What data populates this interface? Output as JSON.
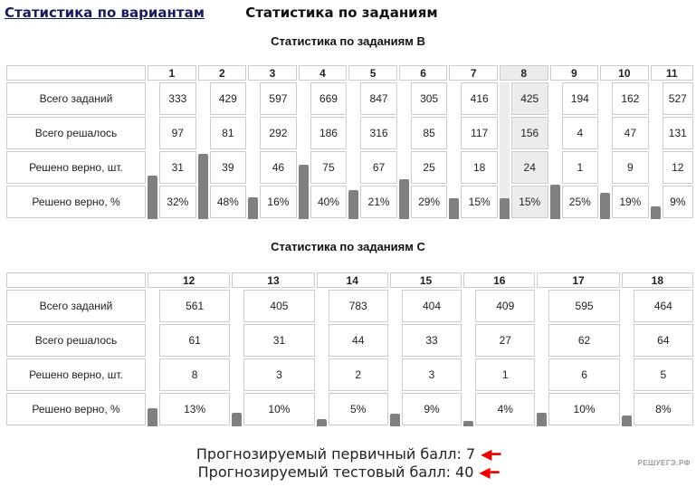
{
  "tabs": {
    "variants": "Статистика по вариантам",
    "tasks": "Статистика по заданиям"
  },
  "row_labels": [
    "Всего заданий",
    "Всего решалось",
    "Решено верно, шт.",
    "Решено верно, %"
  ],
  "section_b": {
    "title": "Статистика по заданиям B",
    "highlighted": "8",
    "columns": [
      {
        "n": "1",
        "total": "333",
        "tried": "97",
        "correct": "31",
        "pct": "32%",
        "pct_value": 32
      },
      {
        "n": "2",
        "total": "429",
        "tried": "81",
        "correct": "39",
        "pct": "48%",
        "pct_value": 48
      },
      {
        "n": "3",
        "total": "597",
        "tried": "292",
        "correct": "46",
        "pct": "16%",
        "pct_value": 16
      },
      {
        "n": "4",
        "total": "669",
        "tried": "186",
        "correct": "75",
        "pct": "40%",
        "pct_value": 40
      },
      {
        "n": "5",
        "total": "847",
        "tried": "316",
        "correct": "67",
        "pct": "21%",
        "pct_value": 21
      },
      {
        "n": "6",
        "total": "305",
        "tried": "85",
        "correct": "25",
        "pct": "29%",
        "pct_value": 29
      },
      {
        "n": "7",
        "total": "416",
        "tried": "117",
        "correct": "18",
        "pct": "15%",
        "pct_value": 15
      },
      {
        "n": "8",
        "total": "425",
        "tried": "156",
        "correct": "24",
        "pct": "15%",
        "pct_value": 15
      },
      {
        "n": "9",
        "total": "194",
        "tried": "4",
        "correct": "1",
        "pct": "25%",
        "pct_value": 25
      },
      {
        "n": "10",
        "total": "162",
        "tried": "47",
        "correct": "9",
        "pct": "19%",
        "pct_value": 19
      },
      {
        "n": "11",
        "total": "527",
        "tried": "131",
        "correct": "12",
        "pct": "9%",
        "pct_value": 9
      }
    ]
  },
  "section_c": {
    "title": "Статистика по заданиям C",
    "columns": [
      {
        "n": "12",
        "total": "561",
        "tried": "61",
        "correct": "8",
        "pct": "13%",
        "pct_value": 13
      },
      {
        "n": "13",
        "total": "405",
        "tried": "31",
        "correct": "3",
        "pct": "10%",
        "pct_value": 10
      },
      {
        "n": "14",
        "total": "783",
        "tried": "44",
        "correct": "2",
        "pct": "5%",
        "pct_value": 5
      },
      {
        "n": "15",
        "total": "404",
        "tried": "33",
        "correct": "3",
        "pct": "9%",
        "pct_value": 9
      },
      {
        "n": "16",
        "total": "409",
        "tried": "27",
        "correct": "1",
        "pct": "4%",
        "pct_value": 4
      },
      {
        "n": "17",
        "total": "595",
        "tried": "62",
        "correct": "6",
        "pct": "10%",
        "pct_value": 10
      },
      {
        "n": "18",
        "total": "464",
        "tried": "64",
        "correct": "5",
        "pct": "8%",
        "pct_value": 8
      }
    ]
  },
  "forecast": {
    "primary": "Прогнозируемый первичный балл: 7",
    "test": "Прогнозируемый тестовый балл: 40"
  },
  "colors": {
    "bar": "#808080",
    "highlight": "#ececec",
    "arrow": "#ee0000",
    "link": "#1a1a5e"
  },
  "logo": "РЕШУЕГЭ.РФ"
}
